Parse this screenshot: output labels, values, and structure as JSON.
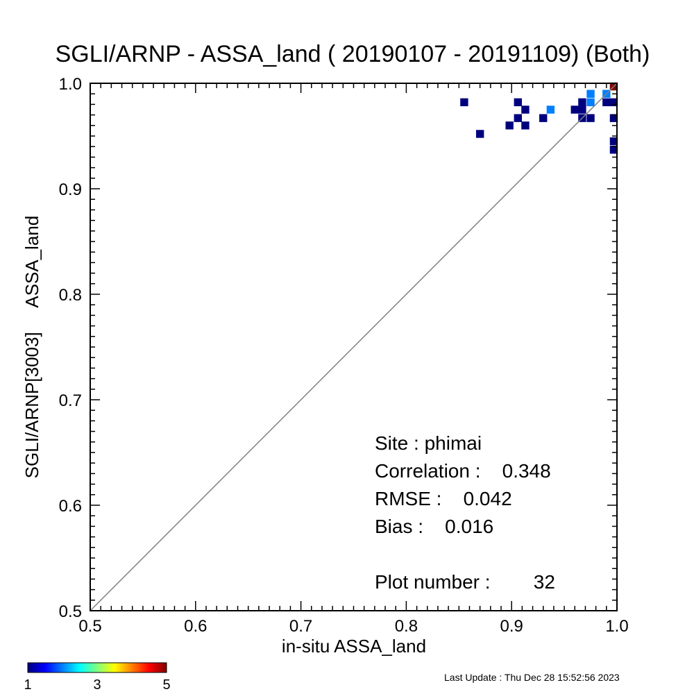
{
  "chart_data": {
    "type": "heatmap",
    "title": "SGLI/ARNP - ASSA_land ( 20190107 - 20191109) (Both)",
    "xlabel": "in-situ ASSA_land",
    "ylabel": "SGLI/ARNP[3003]     ASSA_land",
    "xlim": [
      0.5,
      1.0
    ],
    "ylim": [
      0.5,
      1.0
    ],
    "x_ticks": [
      "0.5",
      "0.6",
      "0.7",
      "0.8",
      "0.9",
      "1.0"
    ],
    "y_ticks": [
      "0.5",
      "0.6",
      "0.7",
      "0.8",
      "0.9",
      "1.0"
    ],
    "identity_line": true,
    "cell_size": 0.0075,
    "cells": [
      {
        "x": 0.855,
        "y": 0.982,
        "count": 1
      },
      {
        "x": 0.87,
        "y": 0.952,
        "count": 1
      },
      {
        "x": 0.898,
        "y": 0.96,
        "count": 1
      },
      {
        "x": 0.906,
        "y": 0.982,
        "count": 1
      },
      {
        "x": 0.906,
        "y": 0.967,
        "count": 1
      },
      {
        "x": 0.913,
        "y": 0.975,
        "count": 1
      },
      {
        "x": 0.913,
        "y": 0.96,
        "count": 1
      },
      {
        "x": 0.93,
        "y": 0.967,
        "count": 1
      },
      {
        "x": 0.937,
        "y": 0.975,
        "count": 2
      },
      {
        "x": 0.96,
        "y": 0.975,
        "count": 1
      },
      {
        "x": 0.967,
        "y": 0.982,
        "count": 1
      },
      {
        "x": 0.967,
        "y": 0.975,
        "count": 1
      },
      {
        "x": 0.967,
        "y": 0.967,
        "count": 1
      },
      {
        "x": 0.975,
        "y": 0.99,
        "count": 2
      },
      {
        "x": 0.975,
        "y": 0.982,
        "count": 2
      },
      {
        "x": 0.975,
        "y": 0.967,
        "count": 1
      },
      {
        "x": 0.99,
        "y": 0.99,
        "count": 2
      },
      {
        "x": 0.99,
        "y": 0.982,
        "count": 1
      },
      {
        "x": 0.997,
        "y": 0.997,
        "count": 5
      },
      {
        "x": 0.997,
        "y": 0.982,
        "count": 1
      },
      {
        "x": 0.997,
        "y": 0.967,
        "count": 1
      },
      {
        "x": 0.997,
        "y": 0.945,
        "count": 1
      },
      {
        "x": 0.997,
        "y": 0.937,
        "count": 1
      }
    ],
    "colorbar": {
      "min": 1,
      "max": 5,
      "ticks": [
        "1",
        "3",
        "5"
      ],
      "colors": [
        "#00007f",
        "#0000ff",
        "#007fff",
        "#00ffff",
        "#7fff7f",
        "#ffff00",
        "#ff7f00",
        "#ff0000",
        "#7f0000"
      ]
    },
    "stats": {
      "site": "Site : phimai",
      "correlation": "Correlation :    0.348",
      "rmse": "RMSE :    0.042",
      "bias": "Bias :    0.016",
      "plot_number": "Plot number :        32"
    },
    "footer": "Last Update : Thu Dec 28 15:52:56 2023"
  }
}
